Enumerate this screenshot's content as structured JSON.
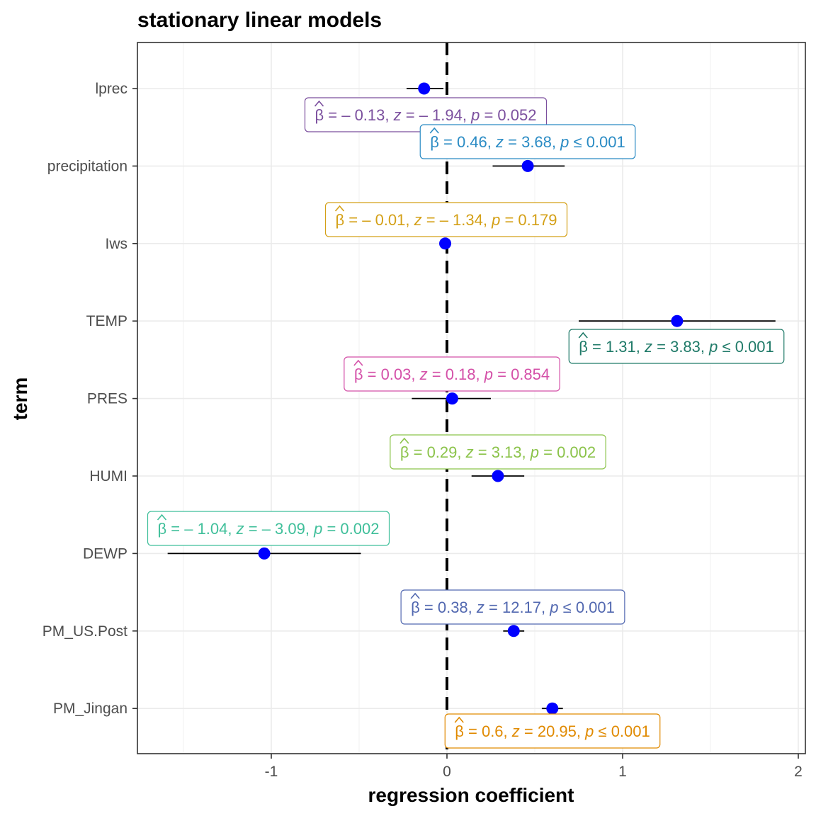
{
  "chart_data": {
    "type": "scatter",
    "title": "stationary linear models",
    "xlabel": "regression coefficient",
    "ylabel": "term",
    "xlim": [
      -1.75,
      2.05
    ],
    "x_ticks": [
      -1,
      0,
      1,
      2
    ],
    "x_tick_labels": [
      "-1",
      "0",
      "1",
      "2"
    ],
    "grid": true,
    "reference_line": 0,
    "point_color": "#0000ff",
    "terms": [
      {
        "term": "lprec",
        "estimate": -0.13,
        "conf_low": -0.23,
        "conf_high": -0.02,
        "z": "-1.94",
        "p": "= 0.052",
        "label_color": "#7b4f9e"
      },
      {
        "term": "precipitation",
        "estimate": 0.46,
        "conf_low": 0.26,
        "conf_high": 0.67,
        "z": "3.68",
        "p": "≤ 0.001",
        "label_color": "#2a8bc4"
      },
      {
        "term": "Iws",
        "estimate": -0.01,
        "conf_low": -0.02,
        "conf_high": 0.0,
        "z": "-1.34",
        "p": "= 0.179",
        "label_color": "#d4a017"
      },
      {
        "term": "TEMP",
        "estimate": 1.31,
        "conf_low": 0.75,
        "conf_high": 1.87,
        "z": "3.83",
        "p": "≤ 0.001",
        "label_color": "#1f7a68"
      },
      {
        "term": "PRES",
        "estimate": 0.03,
        "conf_low": -0.2,
        "conf_high": 0.25,
        "z": "0.18",
        "p": "= 0.854",
        "label_color": "#d450a8"
      },
      {
        "term": "HUMI",
        "estimate": 0.29,
        "conf_low": 0.14,
        "conf_high": 0.44,
        "z": "3.13",
        "p": "= 0.002",
        "label_color": "#8bc34a"
      },
      {
        "term": "DEWP",
        "estimate": -1.04,
        "conf_low": -1.59,
        "conf_high": -0.49,
        "z": "-3.09",
        "p": "= 0.002",
        "label_color": "#3fbf9a"
      },
      {
        "term": "PM_US.Post",
        "estimate": 0.38,
        "conf_low": 0.32,
        "conf_high": 0.44,
        "z": "12.17",
        "p": "≤ 0.001",
        "label_color": "#5268b0"
      },
      {
        "term": "PM_Jingan",
        "estimate": 0.6,
        "conf_low": 0.54,
        "conf_high": 0.66,
        "z": "20.95",
        "p": "≤ 0.001",
        "label_color": "#e08a00"
      }
    ]
  }
}
